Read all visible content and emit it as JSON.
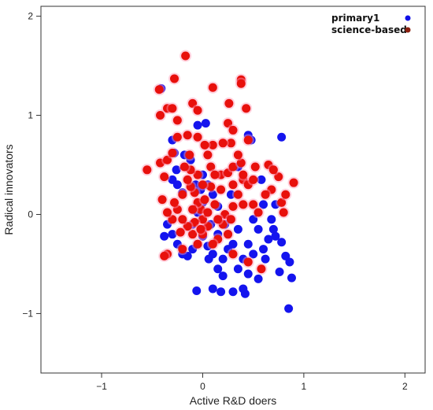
{
  "chart_data": {
    "type": "scatter",
    "xlabel": "Active R&D doers",
    "ylabel": "Radical innovators",
    "xlim": [
      -1.6,
      2.2
    ],
    "ylim": [
      -1.6,
      2.1
    ],
    "x_ticks": [
      -1,
      0,
      1,
      2
    ],
    "y_ticks": [
      -1,
      0,
      1,
      2
    ],
    "x_tick_labels": [
      "−1",
      "0",
      "1",
      "2"
    ],
    "y_tick_labels": [
      "−1",
      "0",
      "1",
      "2"
    ],
    "grid": false,
    "legend_position": "top-right",
    "series": [
      {
        "name": "primary1",
        "color": "#1010e8",
        "points": [
          [
            -0.41,
            1.27
          ],
          [
            -0.3,
            0.75
          ],
          [
            -0.28,
            0.62
          ],
          [
            -0.3,
            0.35
          ],
          [
            -0.25,
            0.3
          ],
          [
            -0.26,
            0.45
          ],
          [
            -0.2,
            0.22
          ],
          [
            -0.12,
            0.55
          ],
          [
            -0.05,
            0.9
          ],
          [
            0.03,
            0.92
          ],
          [
            -0.07,
            0.3
          ],
          [
            -0.02,
            0.25
          ],
          [
            0.05,
            0.3
          ],
          [
            0.1,
            0.2
          ],
          [
            -0.35,
            -0.1
          ],
          [
            -0.38,
            -0.22
          ],
          [
            -0.3,
            -0.2
          ],
          [
            -0.25,
            -0.3
          ],
          [
            -0.2,
            -0.4
          ],
          [
            -0.15,
            -0.42
          ],
          [
            -0.1,
            -0.35
          ],
          [
            -0.05,
            -0.3
          ],
          [
            0.0,
            -0.22
          ],
          [
            0.05,
            -0.32
          ],
          [
            0.1,
            -0.4
          ],
          [
            0.15,
            -0.55
          ],
          [
            0.2,
            -0.45
          ],
          [
            0.25,
            -0.35
          ],
          [
            0.3,
            -0.3
          ],
          [
            0.25,
            -0.2
          ],
          [
            0.35,
            -0.55
          ],
          [
            0.4,
            -0.45
          ],
          [
            0.45,
            -0.3
          ],
          [
            0.5,
            -0.4
          ],
          [
            0.55,
            -0.65
          ],
          [
            0.45,
            -0.6
          ],
          [
            0.4,
            -0.75
          ],
          [
            0.42,
            -0.8
          ],
          [
            0.3,
            -0.78
          ],
          [
            0.2,
            -0.62
          ],
          [
            0.1,
            -0.75
          ],
          [
            0.18,
            -0.78
          ],
          [
            0.6,
            -0.35
          ],
          [
            0.65,
            -0.25
          ],
          [
            0.7,
            -0.15
          ],
          [
            0.68,
            -0.05
          ],
          [
            0.72,
            -0.22
          ],
          [
            0.55,
            -0.15
          ],
          [
            0.6,
            0.1
          ],
          [
            0.78,
            -0.28
          ],
          [
            0.82,
            -0.42
          ],
          [
            0.86,
            -0.48
          ],
          [
            0.88,
            -0.64
          ],
          [
            0.76,
            -0.58
          ],
          [
            0.85,
            -0.95
          ],
          [
            0.78,
            0.78
          ],
          [
            0.72,
            0.1
          ],
          [
            0.58,
            0.35
          ],
          [
            0.45,
            0.8
          ],
          [
            0.48,
            0.75
          ],
          [
            0.35,
            0.48
          ],
          [
            0.28,
            0.2
          ],
          [
            0.15,
            0.08
          ],
          [
            0.0,
            0.12
          ],
          [
            -0.05,
            0.02
          ],
          [
            -0.1,
            -0.1
          ],
          [
            0.0,
            -0.15
          ],
          [
            0.08,
            -0.1
          ],
          [
            0.15,
            -0.2
          ],
          [
            0.22,
            -0.1
          ],
          [
            -0.06,
            -0.77
          ],
          [
            0.06,
            -0.45
          ],
          [
            0.0,
            0.4
          ],
          [
            -0.18,
            0.6
          ],
          [
            0.5,
            -0.05
          ],
          [
            0.62,
            -0.45
          ],
          [
            0.35,
            -0.15
          ]
        ]
      },
      {
        "name": "science-based",
        "color": "#8b2010",
        "points": [
          [
            -0.17,
            1.6
          ],
          [
            -0.28,
            1.37
          ],
          [
            -0.43,
            1.26
          ],
          [
            -0.35,
            1.07
          ],
          [
            -0.3,
            1.07
          ],
          [
            -0.42,
            1.0
          ],
          [
            -0.25,
            0.95
          ],
          [
            -0.1,
            1.12
          ],
          [
            -0.05,
            1.05
          ],
          [
            0.1,
            1.28
          ],
          [
            0.26,
            1.12
          ],
          [
            0.38,
            1.36
          ],
          [
            0.38,
            1.32
          ],
          [
            0.43,
            1.07
          ],
          [
            0.25,
            0.92
          ],
          [
            0.3,
            0.85
          ],
          [
            0.28,
            0.72
          ],
          [
            0.2,
            0.72
          ],
          [
            0.1,
            0.7
          ],
          [
            0.05,
            0.6
          ],
          [
            0.08,
            0.48
          ],
          [
            0.18,
            0.4
          ],
          [
            0.25,
            0.42
          ],
          [
            0.3,
            0.48
          ],
          [
            0.38,
            0.52
          ],
          [
            0.4,
            0.35
          ],
          [
            0.45,
            0.3
          ],
          [
            0.5,
            0.1
          ],
          [
            0.5,
            0.35
          ],
          [
            0.55,
            0.02
          ],
          [
            0.65,
            0.5
          ],
          [
            0.75,
            0.38
          ],
          [
            0.7,
            0.45
          ],
          [
            0.68,
            0.25
          ],
          [
            0.62,
            0.2
          ],
          [
            0.78,
            0.12
          ],
          [
            0.8,
            0.02
          ],
          [
            0.82,
            0.2
          ],
          [
            0.9,
            0.32
          ],
          [
            0.4,
            0.1
          ],
          [
            0.35,
            0.2
          ],
          [
            0.3,
            0.08
          ],
          [
            0.22,
            0.0
          ],
          [
            0.2,
            -0.1
          ],
          [
            0.15,
            -0.25
          ],
          [
            0.1,
            -0.3
          ],
          [
            0.05,
            -0.12
          ],
          [
            0.0,
            -0.05
          ],
          [
            -0.02,
            0.05
          ],
          [
            -0.05,
            0.12
          ],
          [
            -0.08,
            0.22
          ],
          [
            -0.12,
            0.28
          ],
          [
            -0.15,
            0.35
          ],
          [
            -0.2,
            0.2
          ],
          [
            -0.25,
            0.05
          ],
          [
            -0.3,
            -0.05
          ],
          [
            -0.35,
            0.02
          ],
          [
            -0.4,
            0.15
          ],
          [
            -0.38,
            0.38
          ],
          [
            -0.42,
            0.52
          ],
          [
            -0.35,
            0.55
          ],
          [
            -0.3,
            0.62
          ],
          [
            -0.25,
            0.78
          ],
          [
            -0.15,
            0.8
          ],
          [
            -0.05,
            0.78
          ],
          [
            0.02,
            0.7
          ],
          [
            -0.55,
            0.45
          ],
          [
            -0.35,
            -0.4
          ],
          [
            -0.38,
            -0.42
          ],
          [
            -0.2,
            -0.35
          ],
          [
            -0.1,
            -0.2
          ],
          [
            -0.05,
            -0.3
          ],
          [
            0.0,
            -0.2
          ],
          [
            -0.08,
            -0.08
          ],
          [
            -0.15,
            -0.12
          ],
          [
            -0.2,
            -0.05
          ],
          [
            -0.1,
            0.05
          ],
          [
            -0.02,
            -0.15
          ],
          [
            0.05,
            0.02
          ],
          [
            0.12,
            0.1
          ],
          [
            0.18,
            0.25
          ],
          [
            0.12,
            0.4
          ],
          [
            0.08,
            0.28
          ],
          [
            0.0,
            0.3
          ],
          [
            -0.05,
            0.4
          ],
          [
            -0.12,
            0.45
          ],
          [
            -0.18,
            0.48
          ],
          [
            -0.28,
            0.12
          ],
          [
            0.28,
            -0.05
          ],
          [
            0.25,
            -0.2
          ],
          [
            0.3,
            -0.4
          ],
          [
            0.45,
            -0.48
          ],
          [
            0.58,
            -0.55
          ],
          [
            0.35,
            0.6
          ],
          [
            0.45,
            0.75
          ],
          [
            0.3,
            0.3
          ],
          [
            0.4,
            0.4
          ],
          [
            0.52,
            0.48
          ],
          [
            0.15,
            -0.05
          ],
          [
            -0.22,
            -0.18
          ],
          [
            0.02,
            0.15
          ],
          [
            -0.13,
            0.6
          ]
        ]
      }
    ]
  }
}
